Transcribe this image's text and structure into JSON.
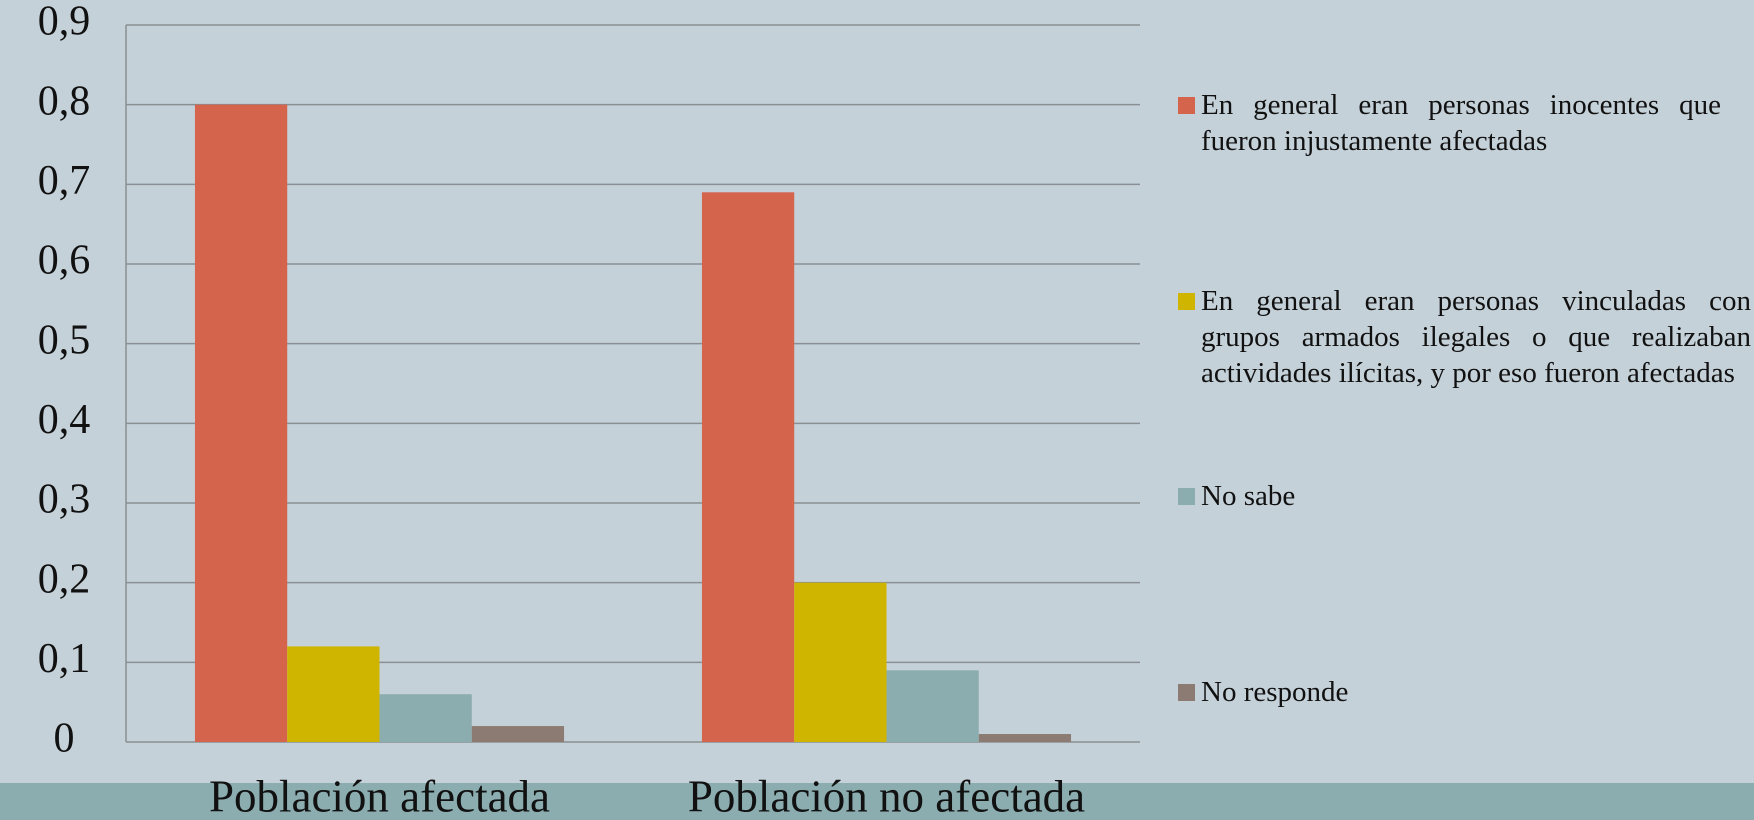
{
  "chart_data": {
    "type": "bar",
    "categories": [
      "Población afectada",
      "Población no afectada"
    ],
    "series": [
      {
        "name": "En general eran personas inocentes que fueron injustamente afectadas",
        "color": "#d4644b",
        "values": [
          0.8,
          0.69
        ]
      },
      {
        "name": "En general eran personas vinculadas con grupos armados ilegales o que realizaban actividades ilícitas, y por eso fueron afectadas",
        "color": "#cfb500",
        "values": [
          0.12,
          0.2
        ]
      },
      {
        "name": "No sabe",
        "color": "#8cadb0",
        "values": [
          0.06,
          0.09
        ]
      },
      {
        "name": "No responde",
        "color": "#8b7b72",
        "values": [
          0.02,
          0.01
        ]
      }
    ],
    "ylim": [
      0,
      0.9
    ],
    "yticks": [
      0,
      {
        "value": 0.1,
        "label": "0,1"
      },
      {
        "value": 0.2,
        "label": "0,2"
      },
      {
        "value": 0.3,
        "label": "0,3"
      },
      {
        "value": 0.4,
        "label": "0,4"
      },
      {
        "value": 0.5,
        "label": "0,5"
      },
      {
        "value": 0.6,
        "label": "0,6"
      },
      {
        "value": 0.7,
        "label": "0,7"
      },
      {
        "value": 0.8,
        "label": "0,8"
      },
      {
        "value": 0.9,
        "label": "0,9"
      }
    ],
    "grid": true,
    "legend": "right"
  }
}
